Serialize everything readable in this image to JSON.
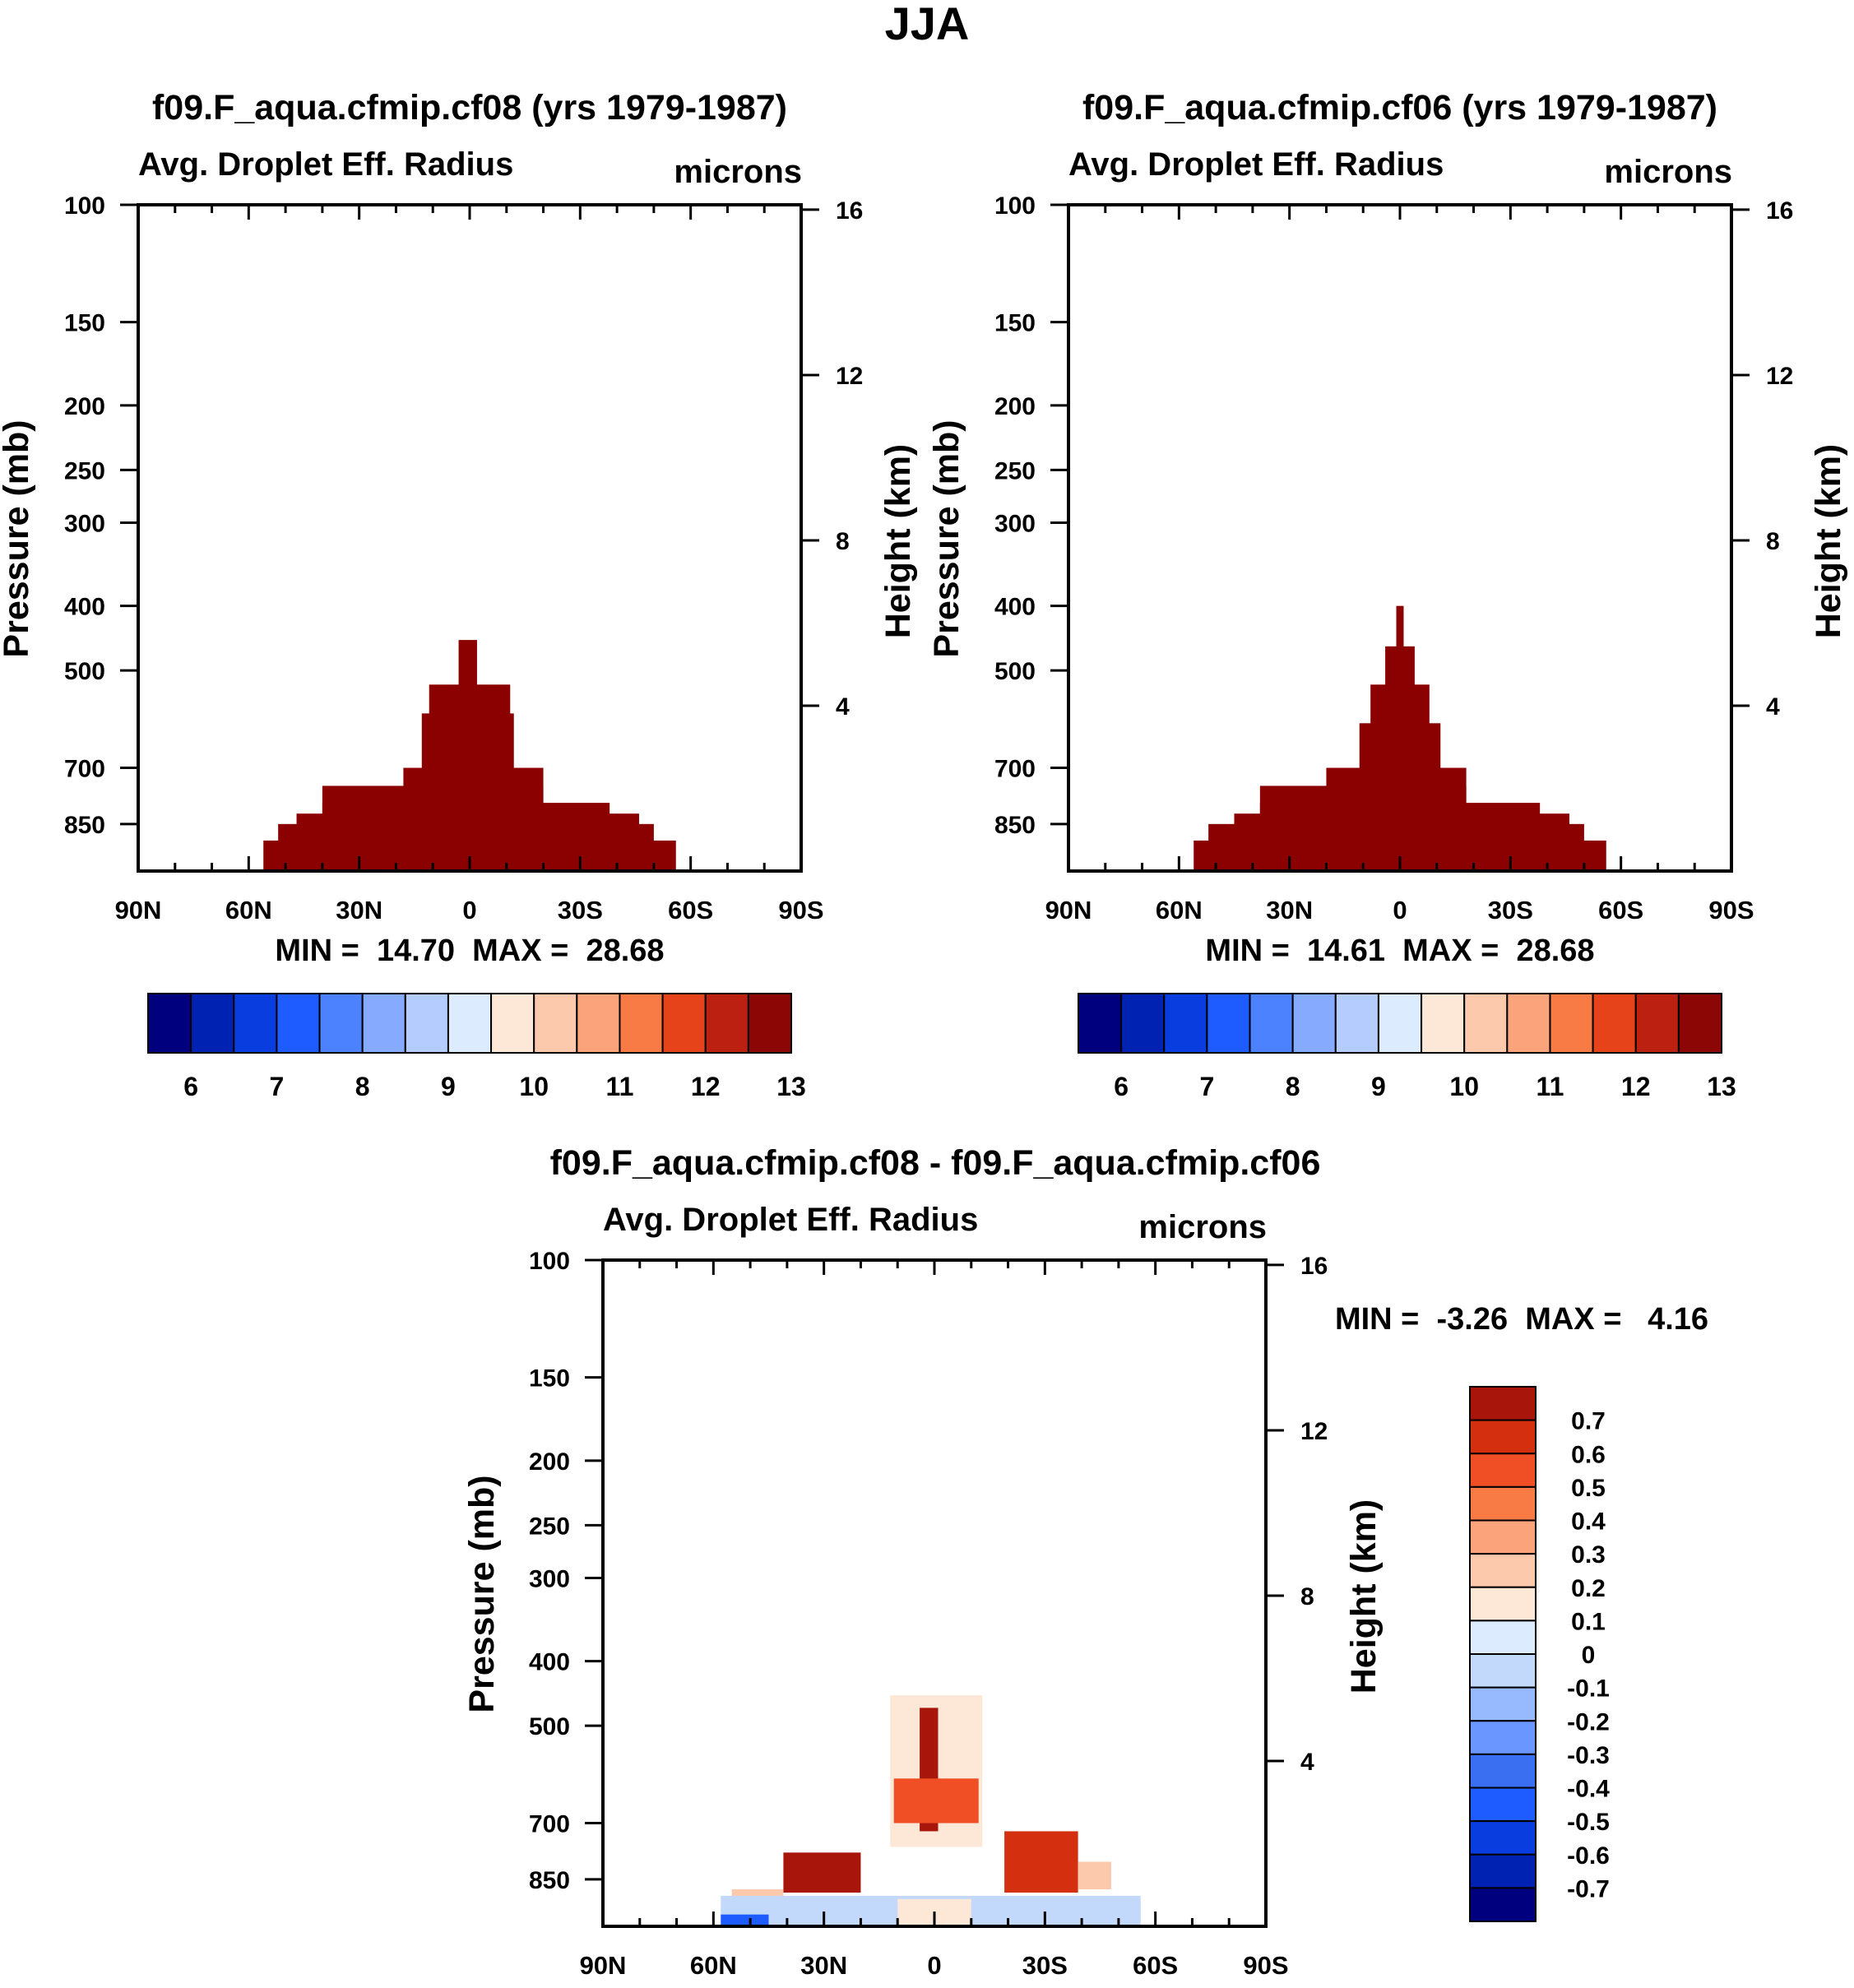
{
  "figure_title": "JJA",
  "chart_data": [
    {
      "type": "contour",
      "title": "f09.F_aqua.cfmip.cf08 (yrs 1979-1987)",
      "variable": "Avg. Droplet Eff. Radius",
      "units": "microns",
      "ylabel": "Pressure (mb)",
      "y2label": "Height (km)",
      "x_ticks": [
        "90N",
        "60N",
        "30N",
        "0",
        "30S",
        "60S",
        "90S"
      ],
      "x_values": [
        90,
        60,
        30,
        0,
        -30,
        -60,
        -90
      ],
      "y_ticks": [
        100,
        150,
        200,
        250,
        300,
        400,
        500,
        700,
        850
      ],
      "y_range": [
        100,
        1000
      ],
      "y2_ticks": [
        16,
        12,
        8,
        4
      ],
      "min_max_label": "MIN =  14.70  MAX =  28.68",
      "min": 14.7,
      "max": 28.68,
      "colorbar_labels": [
        "6",
        "7",
        "8",
        "9",
        "10",
        "11",
        "12",
        "13"
      ],
      "colorbar_levels": [
        6,
        6.5,
        7,
        7.5,
        8,
        8.5,
        9,
        9.5,
        10,
        10.5,
        11,
        11.5,
        12,
        12.5,
        13
      ],
      "fill": "saturated above 13 microns (darkest red)",
      "regions": [
        {
          "lat_from": 56,
          "lat_to": -56,
          "p_top": 900
        },
        {
          "lat_from": 52,
          "lat_to": -50,
          "p_top": 850
        },
        {
          "lat_from": 47,
          "lat_to": -46,
          "p_top": 820
        },
        {
          "lat_from": 40,
          "lat_to": -38,
          "p_top": 790
        },
        {
          "lat_from": 40,
          "lat_to": -20,
          "p_top": 745
        },
        {
          "lat_from": 18,
          "lat_to": -20,
          "p_top": 700
        },
        {
          "lat_from": 13,
          "lat_to": -12,
          "p_top": 580
        },
        {
          "lat_from": 11,
          "lat_to": -11,
          "p_top": 525
        },
        {
          "lat_from": 3,
          "lat_to": -2,
          "p_top": 450
        }
      ]
    },
    {
      "type": "contour",
      "title": "f09.F_aqua.cfmip.cf06 (yrs 1979-1987)",
      "variable": "Avg. Droplet Eff. Radius",
      "units": "microns",
      "ylabel": "Pressure (mb)",
      "y2label": "Height (km)",
      "x_ticks": [
        "90N",
        "60N",
        "30N",
        "0",
        "30S",
        "60S",
        "90S"
      ],
      "x_values": [
        90,
        60,
        30,
        0,
        -30,
        -60,
        -90
      ],
      "y_ticks": [
        100,
        150,
        200,
        250,
        300,
        400,
        500,
        700,
        850
      ],
      "y_range": [
        100,
        1000
      ],
      "y2_ticks": [
        16,
        12,
        8,
        4
      ],
      "min_max_label": "MIN =  14.61  MAX =  28.68",
      "min": 14.61,
      "max": 28.68,
      "colorbar_labels": [
        "6",
        "7",
        "8",
        "9",
        "10",
        "11",
        "12",
        "13"
      ],
      "colorbar_levels": [
        6,
        6.5,
        7,
        7.5,
        8,
        8.5,
        9,
        9.5,
        10,
        10.5,
        11,
        11.5,
        12,
        12.5,
        13
      ],
      "fill": "saturated above 13 microns (darkest red)",
      "regions": [
        {
          "lat_from": 56,
          "lat_to": -56,
          "p_top": 900
        },
        {
          "lat_from": 52,
          "lat_to": -50,
          "p_top": 850
        },
        {
          "lat_from": 45,
          "lat_to": -46,
          "p_top": 820
        },
        {
          "lat_from": 38,
          "lat_to": -38,
          "p_top": 790
        },
        {
          "lat_from": 38,
          "lat_to": -18,
          "p_top": 745
        },
        {
          "lat_from": 20,
          "lat_to": -18,
          "p_top": 700
        },
        {
          "lat_from": 11,
          "lat_to": -11,
          "p_top": 600
        },
        {
          "lat_from": 8,
          "lat_to": -8,
          "p_top": 525
        },
        {
          "lat_from": 4,
          "lat_to": -4,
          "p_top": 460
        },
        {
          "lat_from": 1,
          "lat_to": -1,
          "p_top": 400
        }
      ]
    },
    {
      "type": "contour",
      "title": "f09.F_aqua.cfmip.cf08 - f09.F_aqua.cfmip.cf06",
      "variable": "Avg. Droplet Eff. Radius",
      "units": "microns",
      "ylabel": "Pressure (mb)",
      "y2label": "Height (km)",
      "x_ticks": [
        "90N",
        "60N",
        "30N",
        "0",
        "30S",
        "60S",
        "90S"
      ],
      "x_values": [
        90,
        60,
        30,
        0,
        -30,
        -60,
        -90
      ],
      "y_ticks": [
        100,
        150,
        200,
        250,
        300,
        400,
        500,
        700,
        850
      ],
      "y_range": [
        100,
        1000
      ],
      "y2_ticks": [
        16,
        12,
        8,
        4
      ],
      "min_max_label": "MIN =  -3.26  MAX =   4.16",
      "min": -3.26,
      "max": 4.16,
      "colorbar_labels": [
        "0.7",
        "0.6",
        "0.5",
        "0.4",
        "0.3",
        "0.2",
        "0.1",
        "0",
        "-0.1",
        "-0.2",
        "-0.3",
        "-0.4",
        "-0.5",
        "-0.6",
        "-0.7"
      ],
      "colorbar_levels": [
        0.7,
        0.6,
        0.5,
        0.4,
        0.3,
        0.2,
        0.1,
        0,
        -0.1,
        -0.2,
        -0.3,
        -0.4,
        -0.5,
        -0.6,
        -0.7
      ],
      "patches": [
        {
          "lat_from": 12,
          "lat_to": -13,
          "p_bottom": 760,
          "p_top": 450,
          "value": 0.1
        },
        {
          "lat_from": 4,
          "lat_to": -1,
          "p_bottom": 720,
          "p_top": 470,
          "value": 0.8
        },
        {
          "lat_from": 11,
          "lat_to": -12,
          "p_bottom": 700,
          "p_top": 600,
          "value": 0.6
        },
        {
          "lat_from": 41,
          "lat_to": 20,
          "p_bottom": 890,
          "p_top": 775,
          "value": 0.8
        },
        {
          "lat_from": -19,
          "lat_to": -39,
          "p_bottom": 890,
          "p_top": 720,
          "value": 0.7
        },
        {
          "lat_from": -39,
          "lat_to": -48,
          "p_bottom": 880,
          "p_top": 800,
          "value": 0.2
        },
        {
          "lat_from": 55,
          "lat_to": 41,
          "p_bottom": 940,
          "p_top": 880,
          "value": 0.2
        },
        {
          "lat_from": 58,
          "lat_to": -56,
          "p_bottom": 1000,
          "p_top": 900,
          "value": -0.1
        },
        {
          "lat_from": 58,
          "lat_to": 45,
          "p_bottom": 1000,
          "p_top": 960,
          "value": -0.5
        },
        {
          "lat_from": 10,
          "lat_to": -10,
          "p_bottom": 1000,
          "p_top": 910,
          "value": 0.1
        }
      ]
    }
  ],
  "colors": {
    "cb15": [
      "#00007f",
      "#0022b3",
      "#0a3de0",
      "#1f5cff",
      "#4d82ff",
      "#85aafe",
      "#b5cdfe",
      "#dcebfd",
      "#fde8d8",
      "#fcc9ad",
      "#fba47c",
      "#f87a45",
      "#e6431b",
      "#bb2011",
      "#8c0606"
    ],
    "diff16": [
      "#00007f",
      "#0022b3",
      "#0a3de0",
      "#1f5cff",
      "#3b6ff2",
      "#6a96ff",
      "#97baff",
      "#c3d9fc",
      "#dcebfd",
      "#fde8d8",
      "#fcc9ad",
      "#fba47c",
      "#f87a45",
      "#f04e25",
      "#d4300f",
      "#a8150a"
    ],
    "saturated": "#8b0000"
  }
}
